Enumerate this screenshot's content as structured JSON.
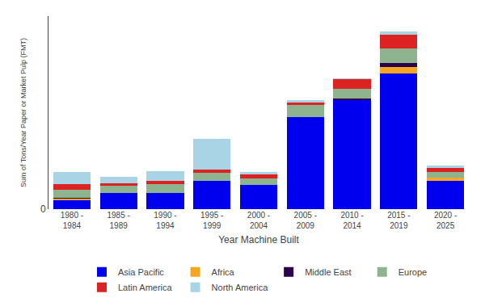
{
  "chart_data": {
    "type": "bar",
    "stacked": true,
    "categories": [
      "1980 -\n1984",
      "1985 -\n1989",
      "1990 -\n1994",
      "1995 -\n1999",
      "2000 -\n2004",
      "2005 -\n2009",
      "2010 -\n2014",
      "2015 -\n2019",
      "2020 -\n2025"
    ],
    "series": [
      {
        "name": "Asia Pacific",
        "color": "#0000ee",
        "values": [
          1.0,
          1.8,
          1.8,
          3.2,
          2.8,
          10.5,
          12.5,
          15.5,
          3.2
        ]
      },
      {
        "name": "Africa",
        "color": "#f5a623",
        "values": [
          0.25,
          0.0,
          0.0,
          0.0,
          0.0,
          0.0,
          0.0,
          0.7,
          0.35
        ]
      },
      {
        "name": "Middle East",
        "color": "#2d004d",
        "values": [
          0.05,
          0.0,
          0.0,
          0.0,
          0.0,
          0.0,
          0.1,
          0.45,
          0.0
        ]
      },
      {
        "name": "Europe",
        "color": "#8db48e",
        "values": [
          0.9,
          0.9,
          1.1,
          0.9,
          0.7,
          1.4,
          1.1,
          1.7,
          0.65
        ]
      },
      {
        "name": "Latin America",
        "color": "#dd2222",
        "values": [
          0.65,
          0.25,
          0.35,
          0.45,
          0.5,
          0.25,
          1.15,
          1.5,
          0.45
        ]
      },
      {
        "name": "North America",
        "color": "#a8d4e6",
        "values": [
          1.4,
          0.7,
          1.1,
          3.5,
          0.2,
          0.25,
          0.05,
          0.4,
          0.3
        ]
      }
    ],
    "xlabel": "Year Machine Built",
    "ylabel": "Sum of Tons/Year Paper or Market Pulp (FMT)",
    "ylim": [
      0,
      22
    ],
    "yticks": [
      0
    ],
    "grid": true,
    "legend": "bottom"
  }
}
